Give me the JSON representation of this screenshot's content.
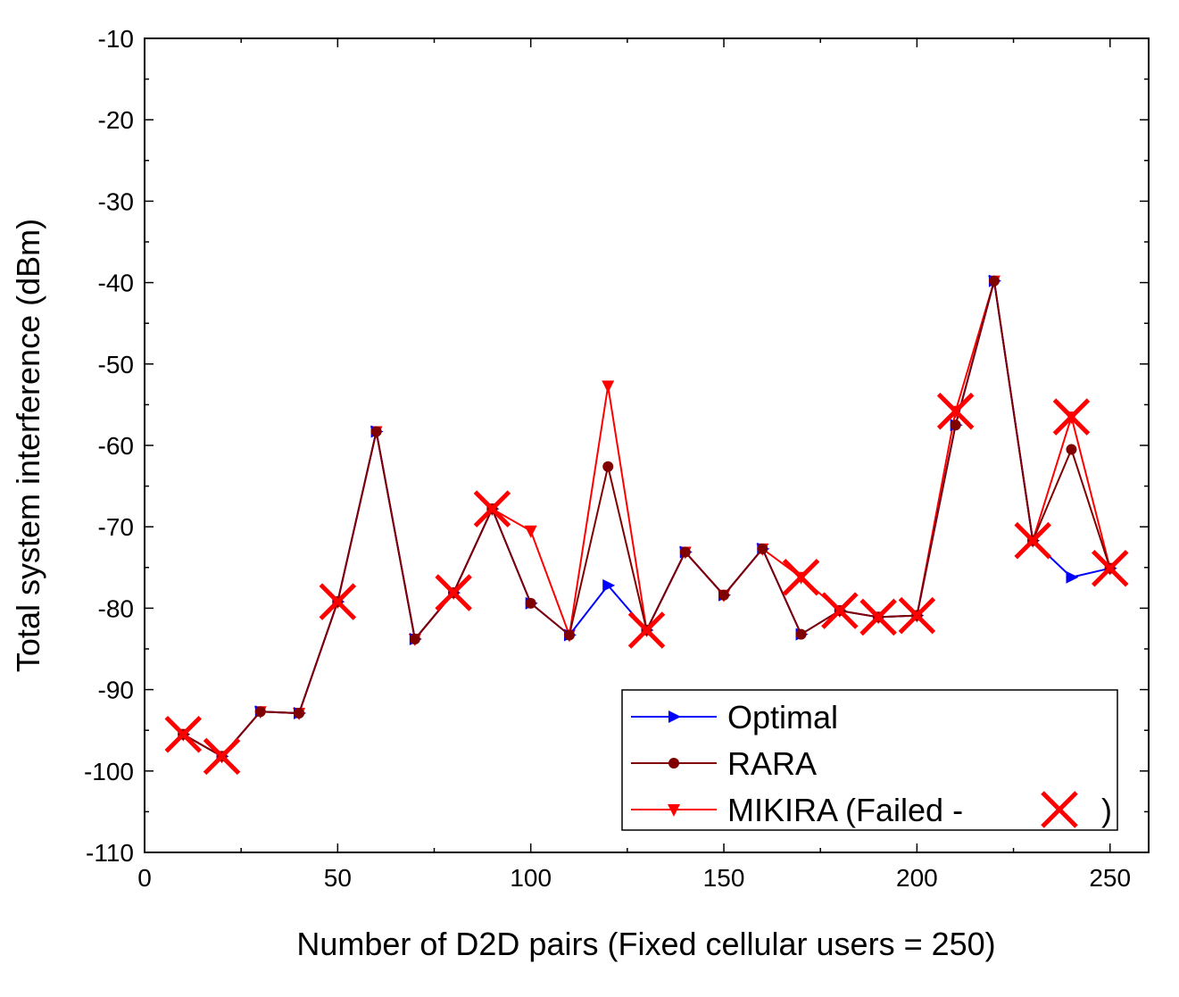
{
  "chart_data": {
    "type": "line",
    "title": "",
    "xlabel": "Number of D2D pairs (Fixed cellular users = 250)",
    "ylabel": "Total system interference (dBm)",
    "xlim": [
      0,
      260
    ],
    "ylim": [
      -110,
      -10
    ],
    "xticks": [
      0,
      50,
      100,
      150,
      200,
      250
    ],
    "yticks": [
      -110,
      -100,
      -90,
      -80,
      -70,
      -60,
      -50,
      -40,
      -30,
      -20,
      -10
    ],
    "x": [
      10,
      20,
      30,
      40,
      50,
      60,
      70,
      80,
      90,
      100,
      110,
      120,
      130,
      140,
      150,
      160,
      170,
      180,
      190,
      200,
      210,
      220,
      230,
      240,
      250
    ],
    "series": [
      {
        "name": "Optimal",
        "color": "#0000ff",
        "marker": "triangle-right",
        "values": [
          -95.5,
          -98.2,
          -92.7,
          -92.9,
          -79.2,
          -58.3,
          -83.8,
          -78.1,
          -67.8,
          -79.4,
          -83.3,
          -77.2,
          -82.7,
          -73.1,
          -78.4,
          -72.7,
          -83.2,
          -80.3,
          -81.1,
          -80.9,
          -57.5,
          -39.8,
          -71.7,
          -76.2,
          -75.1
        ]
      },
      {
        "name": "RARA",
        "color": "#800000",
        "marker": "circle",
        "values": [
          -95.5,
          -98.2,
          -92.7,
          -92.9,
          -79.2,
          -58.3,
          -83.8,
          -78.1,
          -67.8,
          -79.4,
          -83.3,
          -62.6,
          -82.7,
          -73.1,
          -78.4,
          -72.7,
          -83.2,
          -80.3,
          -81.1,
          -80.9,
          -57.5,
          -39.8,
          -71.7,
          -60.5,
          -75.1
        ]
      },
      {
        "name": "MIKIRA (Failed - ",
        "name_suffix": ")",
        "color": "#ff0000",
        "marker": "triangle-down",
        "values": [
          -95.5,
          -98.2,
          -92.7,
          -92.9,
          -79.2,
          -58.3,
          -83.8,
          -78.1,
          -67.8,
          -70.5,
          -83.3,
          -52.7,
          -82.7,
          -73.1,
          -78.4,
          -72.7,
          -76.2,
          -80.3,
          -81.1,
          -80.9,
          -55.8,
          -39.8,
          -71.7,
          -56.5,
          -75.1
        ],
        "failed_x": [
          10,
          20,
          50,
          80,
          90,
          130,
          170,
          180,
          190,
          200,
          210,
          230,
          240,
          250
        ]
      }
    ],
    "legend": {
      "placement": "bottom-right"
    },
    "grid": false
  }
}
